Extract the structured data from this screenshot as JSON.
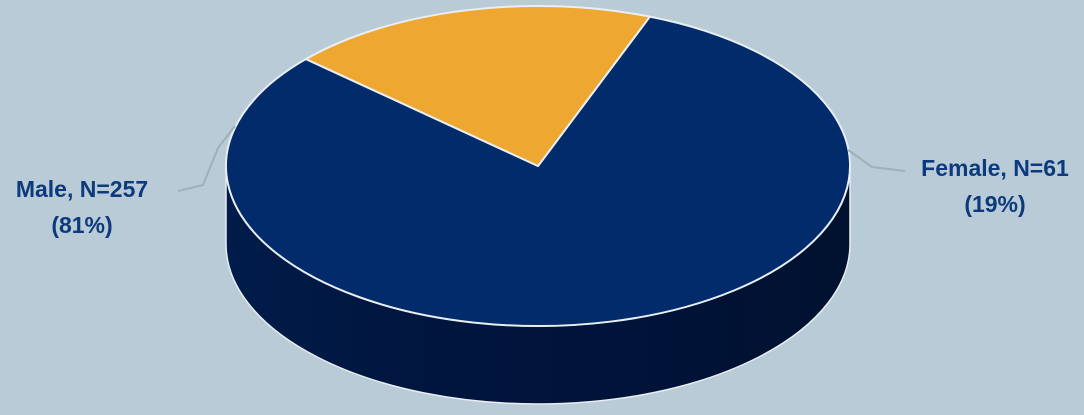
{
  "chart_data": {
    "type": "pie",
    "style": "3d",
    "slices": [
      {
        "name": "Male",
        "value": 257,
        "percent": 81,
        "color": "#022b6b",
        "label_line1": "Male, N=257",
        "label_line2": "(81%)"
      },
      {
        "name": "Female",
        "value": 61,
        "percent": 19,
        "color": "#eea832",
        "label_line1": "Female, N=61",
        "label_line2": "(19%)"
      }
    ],
    "label_color": "#0c3a7c",
    "background": "#b9cbd6"
  }
}
